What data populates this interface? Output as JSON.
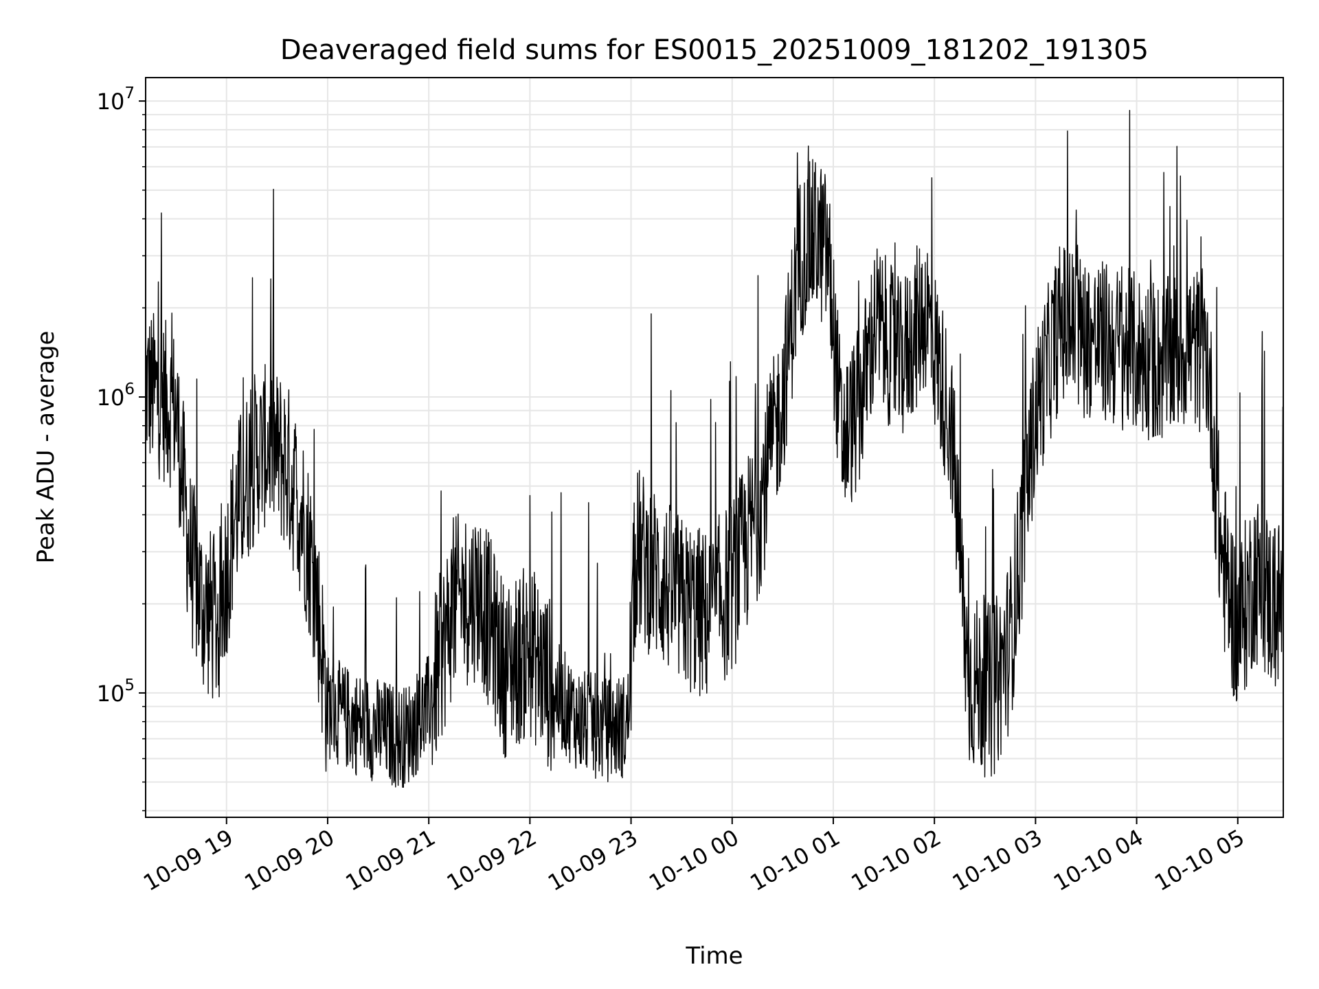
{
  "chart_data": {
    "type": "line",
    "title": "Deaveraged field sums for ES0015_20251009_181202_191305",
    "xlabel": "Time",
    "ylabel": "Peak ADU - average",
    "x_range": [
      "2025-10-09 18:12",
      "2025-10-10 05:27"
    ],
    "y_scale": "log",
    "y_range": [
      38000,
      12000000
    ],
    "y_ticks": [
      {
        "value": 100000,
        "base": "10",
        "exp": "5"
      },
      {
        "value": 1000000,
        "base": "10",
        "exp": "6"
      },
      {
        "value": 10000000,
        "base": "10",
        "exp": "7"
      }
    ],
    "x_ticks": [
      {
        "value": "2025-10-09 19:00",
        "label": "10-09 19"
      },
      {
        "value": "2025-10-09 20:00",
        "label": "10-09 20"
      },
      {
        "value": "2025-10-09 21:00",
        "label": "10-09 21"
      },
      {
        "value": "2025-10-09 22:00",
        "label": "10-09 22"
      },
      {
        "value": "2025-10-09 23:00",
        "label": "10-09 23"
      },
      {
        "value": "2025-10-10 00:00",
        "label": "10-10 00"
      },
      {
        "value": "2025-10-10 01:00",
        "label": "10-10 01"
      },
      {
        "value": "2025-10-10 02:00",
        "label": "10-10 02"
      },
      {
        "value": "2025-10-10 03:00",
        "label": "10-10 03"
      },
      {
        "value": "2025-10-10 04:00",
        "label": "10-10 04"
      },
      {
        "value": "2025-10-10 05:00",
        "label": "10-10 05"
      }
    ],
    "grid": true,
    "line_color": "#000000",
    "grid_color": "#e6e6e6",
    "series": [
      {
        "x": [
          "2025-10-09 18:12",
          "2025-10-09 18:20",
          "2025-10-09 18:30",
          "2025-10-09 18:38",
          "2025-10-09 18:45",
          "2025-10-09 18:55",
          "2025-10-09 19:05",
          "2025-10-09 19:15",
          "2025-10-09 19:25",
          "2025-10-09 19:35",
          "2025-10-09 19:45",
          "2025-10-09 19:52",
          "2025-10-09 20:00",
          "2025-10-09 20:15",
          "2025-10-09 20:30",
          "2025-10-09 20:45",
          "2025-10-09 21:00",
          "2025-10-09 21:15",
          "2025-10-09 21:30",
          "2025-10-09 21:45",
          "2025-10-09 22:00",
          "2025-10-09 22:15",
          "2025-10-09 22:30",
          "2025-10-09 22:45",
          "2025-10-09 22:58",
          "2025-10-09 23:03",
          "2025-10-09 23:15",
          "2025-10-09 23:30",
          "2025-10-09 23:45",
          "2025-10-10 00:00",
          "2025-10-10 00:15",
          "2025-10-10 00:30",
          "2025-10-10 00:40",
          "2025-10-10 00:50",
          "2025-10-10 00:57",
          "2025-10-10 01:05",
          "2025-10-10 01:15",
          "2025-10-10 01:25",
          "2025-10-10 01:40",
          "2025-10-10 01:55",
          "2025-10-10 02:10",
          "2025-10-10 02:20",
          "2025-10-10 02:35",
          "2025-10-10 02:45",
          "2025-10-10 03:00",
          "2025-10-10 03:15",
          "2025-10-10 03:30",
          "2025-10-10 03:45",
          "2025-10-10 04:00",
          "2025-10-10 04:15",
          "2025-10-10 04:30",
          "2025-10-10 04:42",
          "2025-10-10 04:50",
          "2025-10-10 05:00",
          "2025-10-10 05:10",
          "2025-10-10 05:20",
          "2025-10-10 05:27"
        ],
        "values": [
          1100000,
          1000000,
          900000,
          300000,
          200000,
          170000,
          400000,
          600000,
          700000,
          600000,
          400000,
          250000,
          90000,
          80000,
          75000,
          70000,
          90000,
          200000,
          220000,
          120000,
          140000,
          100000,
          80000,
          75000,
          78000,
          300000,
          250000,
          200000,
          180000,
          230000,
          400000,
          1000000,
          3000000,
          3500000,
          3000000,
          700000,
          900000,
          1800000,
          1300000,
          2000000,
          800000,
          110000,
          100000,
          150000,
          900000,
          1800000,
          1600000,
          1500000,
          1400000,
          1300000,
          1500000,
          1400000,
          300000,
          160000,
          250000,
          200000,
          200000
        ]
      }
    ]
  }
}
